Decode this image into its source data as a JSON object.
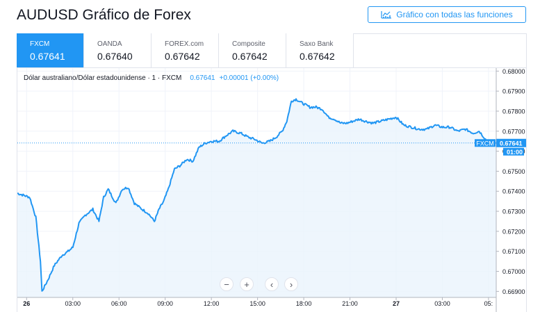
{
  "header": {
    "title": "AUDUSD Gráfico de Forex",
    "full_chart_button": "Gráfico con todas las funciones"
  },
  "tabs": [
    {
      "name": "FXCM",
      "value": "0.67641",
      "active": true
    },
    {
      "name": "OANDA",
      "value": "0.67640",
      "active": false
    },
    {
      "name": "FOREX.com",
      "value": "0.67642",
      "active": false
    },
    {
      "name": "Composite",
      "value": "0.67642",
      "active": false
    },
    {
      "name": "Saxo Bank",
      "value": "0.67642",
      "active": false
    }
  ],
  "legend": {
    "symbol": "Dólar australiano/Dólar estadounidense · 1 · FXCM",
    "last": "0.67641",
    "change": "+0.00001 (+0.00%)"
  },
  "price_tag": {
    "label": "FXCM",
    "value": "0.67641",
    "time": "01:00"
  },
  "controls": {
    "zoom_out": "−",
    "zoom_in": "+",
    "scroll_left": "‹",
    "scroll_right": "›"
  },
  "colors": {
    "line": "#2196f3",
    "area": "#eaf4fd",
    "grid": "#f0f3fa",
    "tab_active": "#2196f3",
    "text": "#131722"
  },
  "chart_data": {
    "type": "area",
    "y_tick_labels": [
      "0.68000",
      "0.67900",
      "0.67800",
      "0.67700",
      "0.67600",
      "0.67500",
      "0.67400",
      "0.67300",
      "0.67200",
      "0.67100",
      "0.67000",
      "0.66900"
    ],
    "y_ticks": [
      0.68,
      0.679,
      0.678,
      0.677,
      0.676,
      0.675,
      0.674,
      0.673,
      0.672,
      0.671,
      0.67,
      0.669
    ],
    "ylim": [
      0.6687,
      0.68015
    ],
    "x_tick_labels": [
      "26",
      "03:00",
      "06:00",
      "09:00",
      "12:00",
      "15:00",
      "18:00",
      "21:00",
      "27",
      "03:00",
      "05:"
    ],
    "x_ticks_hours": [
      0,
      3,
      6,
      9,
      12,
      15,
      18,
      21,
      24,
      27,
      30
    ],
    "xlim_hours": [
      -0.6,
      30.5
    ],
    "series": [
      {
        "x_hours": [
          -0.6,
          0.2,
          0.6,
          0.9,
          1.0,
          1.4,
          1.8,
          2.3,
          2.7,
          3.0,
          3.4,
          3.8,
          4.3,
          4.7,
          5.0,
          5.3,
          5.8,
          6.2,
          6.6,
          7.0,
          7.5,
          7.9,
          8.3,
          8.6,
          8.9,
          9.2,
          9.6,
          10.0,
          10.4,
          10.8,
          11.2,
          11.6,
          12.0,
          12.5,
          13.0,
          13.4,
          13.9,
          14.4,
          14.8,
          15.3,
          15.8,
          16.2,
          16.6,
          16.9,
          17.2,
          17.5,
          17.9,
          18.4,
          18.8,
          19.2,
          19.6,
          20.0,
          20.4,
          20.8,
          21.2,
          21.6,
          22.0,
          22.5,
          23.0,
          23.5,
          24.0,
          24.5,
          25.0,
          25.5,
          26.0,
          26.5,
          27.0,
          27.5,
          28.0,
          28.5,
          29.0,
          29.4,
          29.8,
          30.2,
          30.5
        ],
        "y": [
          0.6739,
          0.6737,
          0.6727,
          0.6705,
          0.669,
          0.6696,
          0.6703,
          0.6708,
          0.671,
          0.6712,
          0.6724,
          0.6728,
          0.6731,
          0.6725,
          0.6737,
          0.6741,
          0.6734,
          0.6741,
          0.6742,
          0.6734,
          0.6731,
          0.6729,
          0.6725,
          0.6731,
          0.6735,
          0.6741,
          0.6751,
          0.6753,
          0.6756,
          0.6755,
          0.6762,
          0.6764,
          0.6765,
          0.6765,
          0.6768,
          0.677,
          0.6769,
          0.6767,
          0.6766,
          0.6764,
          0.6765,
          0.6767,
          0.677,
          0.6775,
          0.6785,
          0.6786,
          0.6784,
          0.6782,
          0.6782,
          0.6781,
          0.6777,
          0.6776,
          0.6774,
          0.6774,
          0.6775,
          0.6776,
          0.6775,
          0.6774,
          0.6775,
          0.6776,
          0.6777,
          0.6773,
          0.6772,
          0.6771,
          0.6771,
          0.6773,
          0.6772,
          0.6772,
          0.677,
          0.6771,
          0.6769,
          0.677,
          0.6766,
          0.6764,
          0.67641
        ]
      }
    ]
  }
}
